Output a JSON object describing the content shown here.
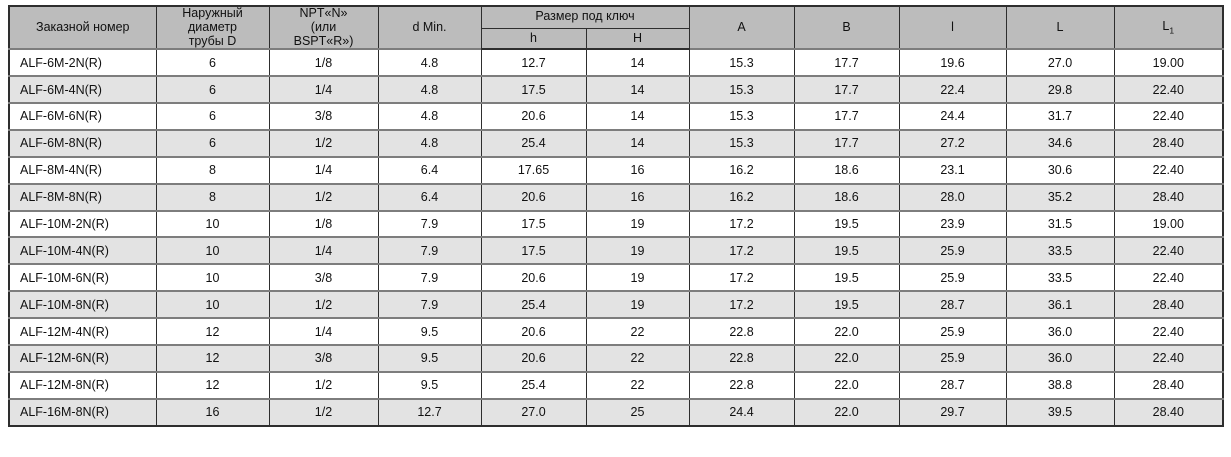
{
  "table": {
    "headers": {
      "order_number": "Заказной номер",
      "outer_diameter": "Наружный\nдиаметр\nтрубы D",
      "npt": "NPT«N»\n(или\nBSPT«R»)",
      "d_min": "d Min.",
      "wrench_size": "Размер под ключ",
      "h_lower": "h",
      "h_upper": "H",
      "a": "A",
      "b": "B",
      "l_lower": "l",
      "l_upper": "L",
      "l1_base": "L",
      "l1_sub": "1"
    },
    "rows": [
      [
        "ALF-6M-2N(R)",
        "6",
        "1/8",
        "4.8",
        "12.7",
        "14",
        "15.3",
        "17.7",
        "19.6",
        "27.0",
        "19.00"
      ],
      [
        "ALF-6M-4N(R)",
        "6",
        "1/4",
        "4.8",
        "17.5",
        "14",
        "15.3",
        "17.7",
        "22.4",
        "29.8",
        "22.40"
      ],
      [
        "ALF-6M-6N(R)",
        "6",
        "3/8",
        "4.8",
        "20.6",
        "14",
        "15.3",
        "17.7",
        "24.4",
        "31.7",
        "22.40"
      ],
      [
        "ALF-6M-8N(R)",
        "6",
        "1/2",
        "4.8",
        "25.4",
        "14",
        "15.3",
        "17.7",
        "27.2",
        "34.6",
        "28.40"
      ],
      [
        "ALF-8M-4N(R)",
        "8",
        "1/4",
        "6.4",
        "17.65",
        "16",
        "16.2",
        "18.6",
        "23.1",
        "30.6",
        "22.40"
      ],
      [
        "ALF-8M-8N(R)",
        "8",
        "1/2",
        "6.4",
        "20.6",
        "16",
        "16.2",
        "18.6",
        "28.0",
        "35.2",
        "28.40"
      ],
      [
        "ALF-10M-2N(R)",
        "10",
        "1/8",
        "7.9",
        "17.5",
        "19",
        "17.2",
        "19.5",
        "23.9",
        "31.5",
        "19.00"
      ],
      [
        "ALF-10M-4N(R)",
        "10",
        "1/4",
        "7.9",
        "17.5",
        "19",
        "17.2",
        "19.5",
        "25.9",
        "33.5",
        "22.40"
      ],
      [
        "ALF-10M-6N(R)",
        "10",
        "3/8",
        "7.9",
        "20.6",
        "19",
        "17.2",
        "19.5",
        "25.9",
        "33.5",
        "22.40"
      ],
      [
        "ALF-10M-8N(R)",
        "10",
        "1/2",
        "7.9",
        "25.4",
        "19",
        "17.2",
        "19.5",
        "28.7",
        "36.1",
        "28.40"
      ],
      [
        "ALF-12M-4N(R)",
        "12",
        "1/4",
        "9.5",
        "20.6",
        "22",
        "22.8",
        "22.0",
        "25.9",
        "36.0",
        "22.40"
      ],
      [
        "ALF-12M-6N(R)",
        "12",
        "3/8",
        "9.5",
        "20.6",
        "22",
        "22.8",
        "22.0",
        "25.9",
        "36.0",
        "22.40"
      ],
      [
        "ALF-12M-8N(R)",
        "12",
        "1/2",
        "9.5",
        "25.4",
        "22",
        "22.8",
        "22.0",
        "28.7",
        "38.8",
        "28.40"
      ],
      [
        "ALF-16M-8N(R)",
        "16",
        "1/2",
        "12.7",
        "27.0",
        "25",
        "24.4",
        "22.0",
        "29.7",
        "39.5",
        "28.40"
      ]
    ]
  },
  "colors": {
    "header_bg": "#bcbcbc",
    "alt_row_bg": "#e3e3e3",
    "border_dark": "#2e2e2e",
    "border_gray": "#7d7d7d"
  }
}
